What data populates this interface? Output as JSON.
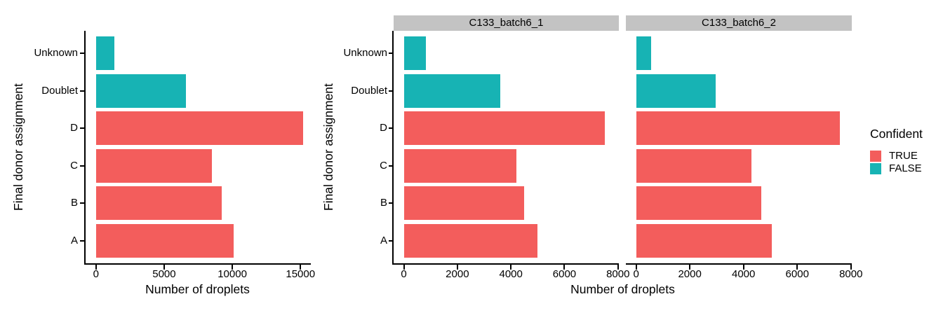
{
  "colors": {
    "confident_true": "#F35D5C",
    "confident_false": "#17B3B4",
    "strip_bg": "#C3C3C3",
    "axis": "#000000",
    "text": "#000000"
  },
  "legend": {
    "title": "Confident",
    "position": "right",
    "items": [
      {
        "label": "TRUE",
        "color": "#F35D5C"
      },
      {
        "label": "FALSE",
        "color": "#17B3B4"
      }
    ]
  },
  "chart_data": [
    {
      "type": "bar",
      "orientation": "horizontal",
      "title": "",
      "xlabel": "Number of droplets",
      "ylabel": "Final donor assignment",
      "grid": false,
      "categories_top_to_bottom": [
        "Unknown",
        "Doublet",
        "D",
        "C",
        "B",
        "A"
      ],
      "series": [
        {
          "category": "Unknown",
          "confident": "FALSE",
          "value": 1350
        },
        {
          "category": "Doublet",
          "confident": "FALSE",
          "value": 6600
        },
        {
          "category": "D",
          "confident": "TRUE",
          "value": 15200
        },
        {
          "category": "C",
          "confident": "TRUE",
          "value": 8500
        },
        {
          "category": "B",
          "confident": "TRUE",
          "value": 9200
        },
        {
          "category": "A",
          "confident": "TRUE",
          "value": 10100
        }
      ],
      "xticks": [
        0,
        5000,
        10000,
        15000
      ],
      "xlim": [
        -760,
        15760
      ]
    },
    {
      "type": "bar",
      "orientation": "horizontal",
      "title": "",
      "xlabel": "Number of droplets",
      "ylabel": "Final donor assignment",
      "grid": false,
      "categories_top_to_bottom": [
        "Unknown",
        "Doublet",
        "D",
        "C",
        "B",
        "A"
      ],
      "facets": [
        {
          "label": "C133_batch6_1",
          "series": [
            {
              "category": "Unknown",
              "confident": "FALSE",
              "value": 830
            },
            {
              "category": "Doublet",
              "confident": "FALSE",
              "value": 3600
            },
            {
              "category": "D",
              "confident": "TRUE",
              "value": 7500
            },
            {
              "category": "C",
              "confident": "TRUE",
              "value": 4200
            },
            {
              "category": "B",
              "confident": "TRUE",
              "value": 4500
            },
            {
              "category": "A",
              "confident": "TRUE",
              "value": 5000
            }
          ]
        },
        {
          "label": "C133_batch6_2",
          "series": [
            {
              "category": "Unknown",
              "confident": "FALSE",
              "value": 550
            },
            {
              "category": "Doublet",
              "confident": "FALSE",
              "value": 2950
            },
            {
              "category": "D",
              "confident": "TRUE",
              "value": 7600
            },
            {
              "category": "C",
              "confident": "TRUE",
              "value": 4300
            },
            {
              "category": "B",
              "confident": "TRUE",
              "value": 4650
            },
            {
              "category": "A",
              "confident": "TRUE",
              "value": 5050
            }
          ]
        }
      ],
      "xticks": [
        0,
        2000,
        4000,
        6000,
        8000
      ],
      "xlim": [
        -382,
        8032
      ]
    }
  ]
}
